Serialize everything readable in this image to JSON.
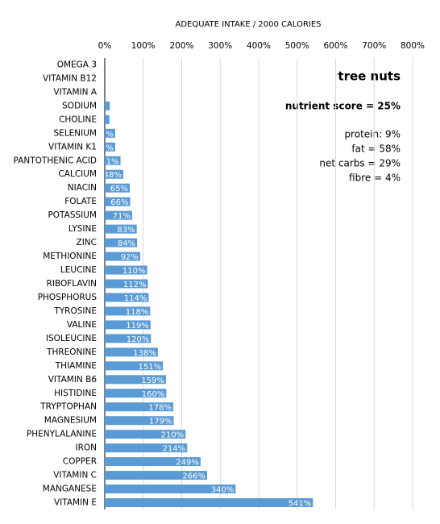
{
  "chart_data": {
    "type": "bar",
    "orientation": "horizontal",
    "title": "ADEQUATE INTAKE / 2000 CALORIES",
    "categories": [
      "OMEGA 3",
      "VITAMIN B12",
      "VITAMIN A",
      "SODIUM",
      "CHOLINE",
      "SELENIUM",
      "VITAMIN K1",
      "PANTOTHENIC ACID",
      "CALCIUM",
      "NIACIN",
      "FOLATE",
      "POTASSIUM",
      "LYSINE",
      "ZINC",
      "METHIONINE",
      "LEUCINE",
      "RIBOFLAVIN",
      "PHOSPHORUS",
      "TYROSINE",
      "VALINE",
      "ISOLEUCINE",
      "THREONINE",
      "THIAMINE",
      "VITAMIN B6",
      "HISTIDINE",
      "TRYPTOPHAN",
      "MAGNESIUM",
      "PHENYLALANINE",
      "IRON",
      "COPPER",
      "VITAMIN C",
      "MANGANESE",
      "VITAMIN E"
    ],
    "values": [
      0,
      0,
      0,
      13,
      12,
      27,
      27,
      41,
      48,
      65,
      66,
      71,
      83,
      84,
      92,
      110,
      112,
      114,
      118,
      119,
      120,
      138,
      151,
      159,
      160,
      178,
      179,
      210,
      214,
      249,
      266,
      340,
      541
    ],
    "value_labels": [
      null,
      null,
      null,
      null,
      null,
      "27%",
      "27%",
      "41%",
      "48%",
      "65%",
      "66%",
      "71%",
      "83%",
      "84%",
      "92%",
      "110%",
      "112%",
      "114%",
      "118%",
      "119%",
      "120%",
      "138%",
      "151%",
      "159%",
      "160%",
      "178%",
      "179%",
      "210%",
      "214%",
      "249%",
      "266%",
      "340%",
      "541%"
    ],
    "color": "#5b9bd5",
    "xlim": [
      0,
      800
    ],
    "xticks": [
      {
        "value": 0,
        "label": "0%"
      },
      {
        "value": 100,
        "label": "100%"
      },
      {
        "value": 200,
        "label": "200%"
      },
      {
        "value": 300,
        "label": "300%"
      },
      {
        "value": 400,
        "label": "400%"
      },
      {
        "value": 500,
        "label": "500%"
      },
      {
        "value": 600,
        "label": "600%"
      },
      {
        "value": 700,
        "label": "700%"
      },
      {
        "value": 800,
        "label": "800%"
      }
    ],
    "grid": true,
    "annotations": [
      "tree nuts",
      "nutrient score = 25%",
      "protein: 9%",
      "fat = 58%",
      "net carbs = 29%",
      "fibre = 4%"
    ]
  }
}
